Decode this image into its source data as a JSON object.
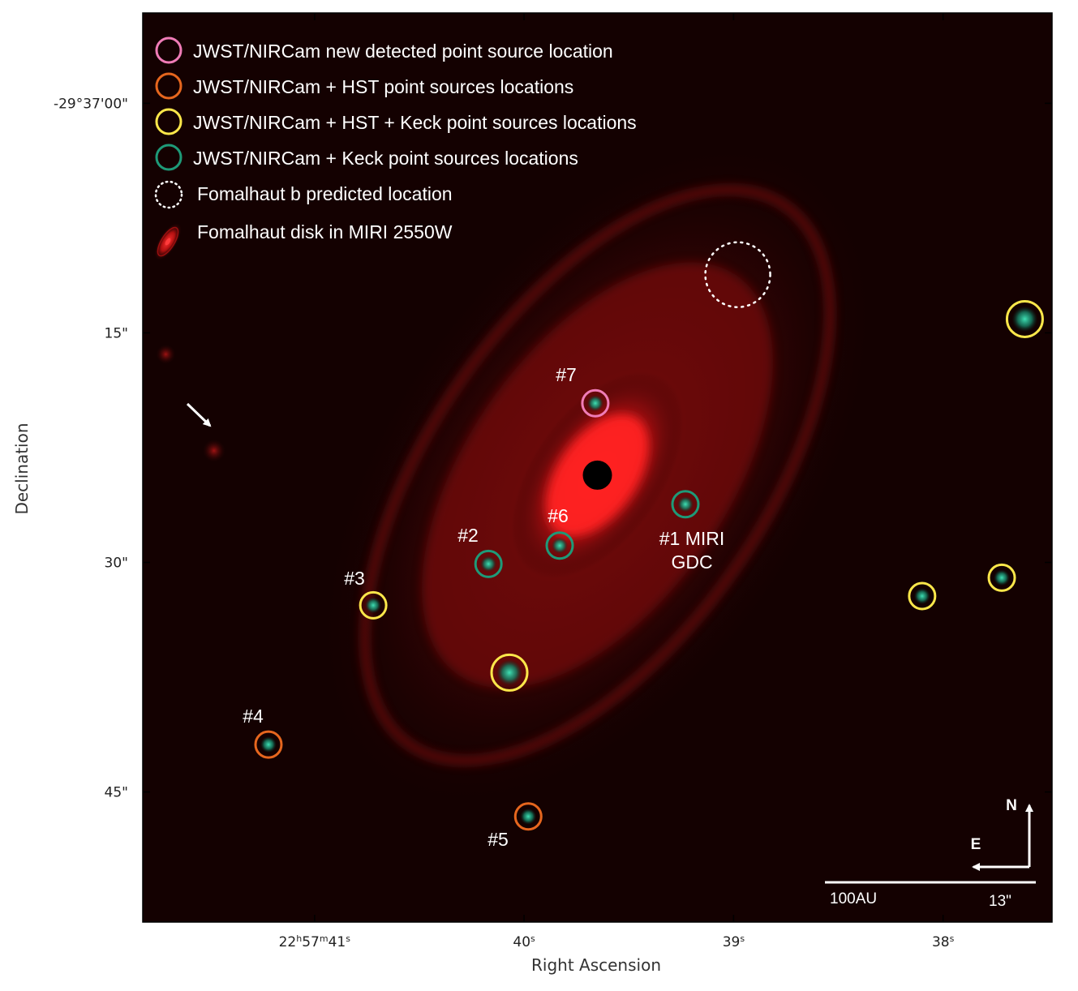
{
  "chart_data": {
    "type": "scatter",
    "title": "",
    "xlabel": "Right Ascension",
    "ylabel": "Declination",
    "x_ticks": [
      {
        "value": 41,
        "label_parts": [
          "22",
          "h",
          "57",
          "m",
          "41",
          "s"
        ]
      },
      {
        "value": 40,
        "label_parts": [
          "40",
          "s"
        ]
      },
      {
        "value": 39,
        "label_parts": [
          "39",
          "s"
        ]
      },
      {
        "value": 38,
        "label_parts": [
          "38",
          "s"
        ]
      }
    ],
    "y_ticks": [
      {
        "value": 0,
        "label": "-29°37'00\""
      },
      {
        "value": 15,
        "label": "15\""
      },
      {
        "value": 30,
        "label": "30\""
      },
      {
        "value": 45,
        "label": "45\""
      }
    ],
    "xlim": [
      41.82,
      37.48
    ],
    "ylim": [
      -5.9,
      53.5
    ],
    "star": {
      "x": 39.65,
      "y": 24.3
    },
    "disk": {
      "label": "Fomalhaut disk in MIRI 2550W",
      "color": "#e0141e"
    },
    "series": [
      {
        "name": "JWST/NIRCam new detected point source location",
        "color": "#f07cb7",
        "points": [
          {
            "x": 39.66,
            "y": 19.6,
            "label": "#7"
          }
        ]
      },
      {
        "name": "JWST/NIRCam + HST point sources locations",
        "color": "#e6661e",
        "points": [
          {
            "x": 41.22,
            "y": 41.9,
            "label": "#4"
          },
          {
            "x": 39.98,
            "y": 46.6,
            "label": "#5"
          }
        ]
      },
      {
        "name": "JWST/NIRCam + HST + Keck point sources locations",
        "color": "#fce74a",
        "points": [
          {
            "x": 40.72,
            "y": 32.8,
            "label": "#3"
          },
          {
            "x": 40.07,
            "y": 37.2,
            "label": ""
          },
          {
            "x": 37.61,
            "y": 14.1,
            "label": ""
          },
          {
            "x": 38.1,
            "y": 32.2,
            "label": ""
          },
          {
            "x": 37.72,
            "y": 31.0,
            "label": ""
          }
        ]
      },
      {
        "name": "JWST/NIRCam + Keck point sources locations",
        "color": "#1e9a78",
        "points": [
          {
            "x": 40.17,
            "y": 30.1,
            "label": "#2"
          },
          {
            "x": 39.83,
            "y": 28.9,
            "label": "#6"
          },
          {
            "x": 39.23,
            "y": 26.2,
            "label": "#1 MIRI GDC"
          }
        ]
      }
    ],
    "fomalhaut_b": {
      "name": "Fomalhaut b predicted location",
      "x": 38.98,
      "y": 11.2
    },
    "extra_blobs": [
      {
        "x": 41.48,
        "y": 22.7
      },
      {
        "x": 41.71,
        "y": 16.4
      }
    ],
    "annotations": {
      "label_7": "#7",
      "label_6": "#6",
      "label_2": "#2",
      "label_3": "#3",
      "label_4": "#4",
      "label_5": "#5",
      "label_1_line1": "#1 MIRI",
      "label_1_line2": "GDC"
    },
    "compass": {
      "north": "N",
      "east": "E"
    },
    "scale_bar": {
      "au_label": "100AU",
      "arcsec_label": "13\""
    },
    "legend_position": "top-left"
  }
}
